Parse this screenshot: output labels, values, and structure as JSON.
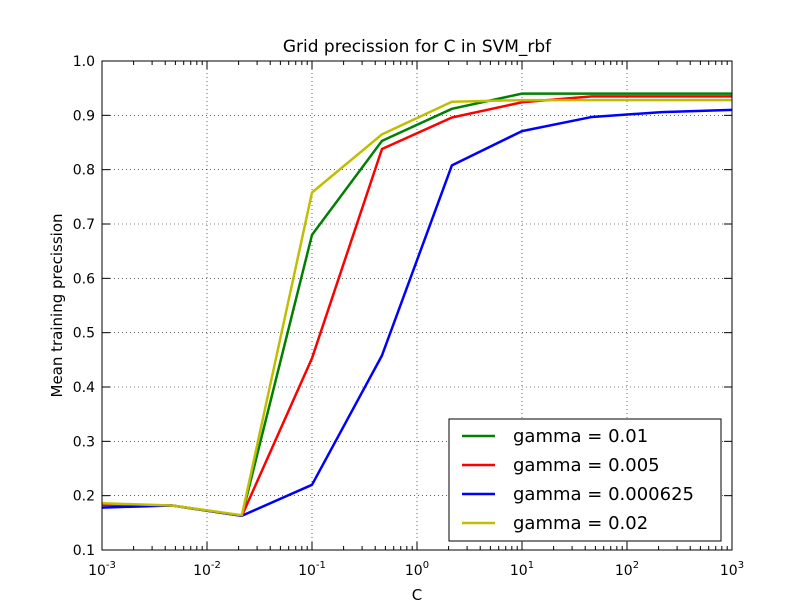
{
  "chart_data": {
    "type": "line",
    "title": "Grid precission for C in SVM_rbf",
    "xlabel": "C",
    "ylabel": "Mean training precission",
    "xscale": "log",
    "xlim": [
      0.001,
      1000
    ],
    "ylim": [
      0.1,
      1.0
    ],
    "grid": true,
    "legend_position": "lower-right",
    "x_ticks": [
      {
        "base": "10",
        "exp": "-3",
        "value": 0.001
      },
      {
        "base": "10",
        "exp": "-2",
        "value": 0.01
      },
      {
        "base": "10",
        "exp": "-1",
        "value": 0.1
      },
      {
        "base": "10",
        "exp": "0",
        "value": 1
      },
      {
        "base": "10",
        "exp": "1",
        "value": 10
      },
      {
        "base": "10",
        "exp": "2",
        "value": 100
      },
      {
        "base": "10",
        "exp": "3",
        "value": 1000
      }
    ],
    "y_ticks": [
      "0.1",
      "0.2",
      "0.3",
      "0.4",
      "0.5",
      "0.6",
      "0.7",
      "0.8",
      "0.9",
      "1.0"
    ],
    "x": [
      0.001,
      0.0046,
      0.0215,
      0.1,
      0.464,
      2.15,
      10,
      46.4,
      215,
      1000
    ],
    "series": [
      {
        "name": "gamma = 0.01",
        "color": "#008000",
        "values": [
          0.183,
          0.182,
          0.163,
          0.68,
          0.853,
          0.912,
          0.94,
          0.94,
          0.94,
          0.94
        ]
      },
      {
        "name": "gamma = 0.005",
        "color": "#ff0000",
        "values": [
          0.183,
          0.182,
          0.163,
          0.453,
          0.838,
          0.896,
          0.924,
          0.935,
          0.935,
          0.935
        ]
      },
      {
        "name": "gamma = 0.000625",
        "color": "#0000ff",
        "values": [
          0.178,
          0.182,
          0.163,
          0.22,
          0.458,
          0.808,
          0.871,
          0.897,
          0.906,
          0.91
        ]
      },
      {
        "name": "gamma = 0.02",
        "color": "#bfbf00",
        "values": [
          0.186,
          0.182,
          0.164,
          0.758,
          0.865,
          0.925,
          0.928,
          0.928,
          0.928,
          0.928
        ]
      }
    ]
  }
}
